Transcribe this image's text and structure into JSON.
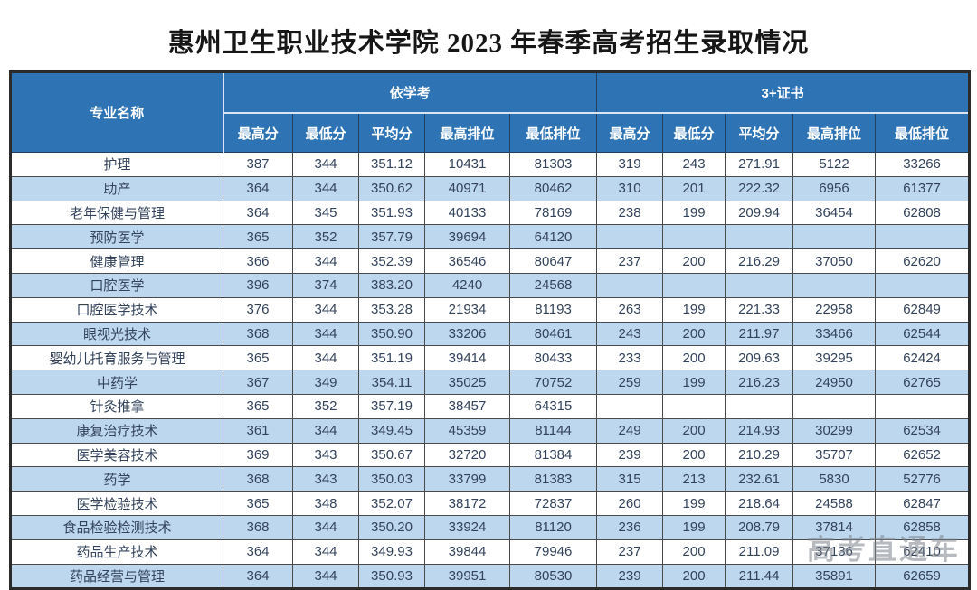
{
  "title": "惠州卫生职业技术学院 2023 年春季高考招生录取情况",
  "watermark": "高考直通车",
  "colors": {
    "header_bg": "#2e74b5",
    "stripe_bg": "#bdd7ee",
    "header_text": "#ffffff",
    "body_text": "#33435c",
    "title_text": "#161616"
  },
  "table": {
    "major_header": "专业名称",
    "groups": [
      {
        "label": "依学考",
        "columns": [
          "最高分",
          "最低分",
          "平均分",
          "最高排位",
          "最低排位"
        ]
      },
      {
        "label": "3+证书",
        "columns": [
          "最高分",
          "最低分",
          "平均分",
          "最高排位",
          "最低排位"
        ]
      }
    ],
    "rows": [
      {
        "major": "护理",
        "values": [
          "387",
          "344",
          "351.12",
          "10431",
          "81303",
          "319",
          "243",
          "271.91",
          "5122",
          "33266"
        ]
      },
      {
        "major": "助产",
        "values": [
          "364",
          "344",
          "350.62",
          "40971",
          "80462",
          "310",
          "201",
          "222.32",
          "6956",
          "61377"
        ]
      },
      {
        "major": "老年保健与管理",
        "values": [
          "364",
          "345",
          "351.93",
          "40133",
          "78169",
          "238",
          "199",
          "209.94",
          "36454",
          "62808"
        ]
      },
      {
        "major": "预防医学",
        "values": [
          "365",
          "352",
          "357.79",
          "39694",
          "64120",
          "",
          "",
          "",
          "",
          ""
        ]
      },
      {
        "major": "健康管理",
        "values": [
          "366",
          "344",
          "352.39",
          "36546",
          "80647",
          "237",
          "200",
          "216.29",
          "37050",
          "62620"
        ]
      },
      {
        "major": "口腔医学",
        "values": [
          "396",
          "374",
          "383.20",
          "4240",
          "24568",
          "",
          "",
          "",
          "",
          ""
        ]
      },
      {
        "major": "口腔医学技术",
        "values": [
          "376",
          "344",
          "353.28",
          "21934",
          "81193",
          "263",
          "199",
          "221.33",
          "22958",
          "62849"
        ]
      },
      {
        "major": "眼视光技术",
        "values": [
          "368",
          "344",
          "350.90",
          "33206",
          "80461",
          "243",
          "200",
          "211.97",
          "33466",
          "62544"
        ]
      },
      {
        "major": "婴幼儿托育服务与管理",
        "values": [
          "365",
          "344",
          "351.19",
          "39414",
          "80433",
          "233",
          "200",
          "209.63",
          "39295",
          "62424"
        ]
      },
      {
        "major": "中药学",
        "values": [
          "367",
          "349",
          "354.11",
          "35025",
          "70752",
          "259",
          "199",
          "216.23",
          "24950",
          "62765"
        ]
      },
      {
        "major": "针灸推拿",
        "values": [
          "365",
          "352",
          "357.19",
          "38457",
          "64315",
          "",
          "",
          "",
          "",
          ""
        ]
      },
      {
        "major": "康复治疗技术",
        "values": [
          "361",
          "344",
          "349.45",
          "45359",
          "81144",
          "249",
          "200",
          "214.93",
          "30299",
          "62534"
        ]
      },
      {
        "major": "医学美容技术",
        "values": [
          "369",
          "343",
          "350.67",
          "32720",
          "81384",
          "239",
          "200",
          "210.29",
          "35707",
          "62652"
        ]
      },
      {
        "major": "药学",
        "values": [
          "368",
          "343",
          "350.03",
          "33799",
          "81383",
          "315",
          "213",
          "232.61",
          "5830",
          "52776"
        ]
      },
      {
        "major": "医学检验技术",
        "values": [
          "365",
          "348",
          "352.07",
          "38172",
          "72837",
          "260",
          "199",
          "218.64",
          "24588",
          "62847"
        ]
      },
      {
        "major": "食品检验检测技术",
        "values": [
          "368",
          "344",
          "350.20",
          "33924",
          "81120",
          "236",
          "199",
          "208.79",
          "37814",
          "62858"
        ]
      },
      {
        "major": "药品生产技术",
        "values": [
          "364",
          "344",
          "349.93",
          "39844",
          "79946",
          "237",
          "200",
          "211.09",
          "37136",
          "62410"
        ]
      },
      {
        "major": "药品经营与管理",
        "values": [
          "364",
          "344",
          "350.93",
          "39951",
          "80530",
          "239",
          "200",
          "211.44",
          "35891",
          "62659"
        ]
      }
    ]
  }
}
